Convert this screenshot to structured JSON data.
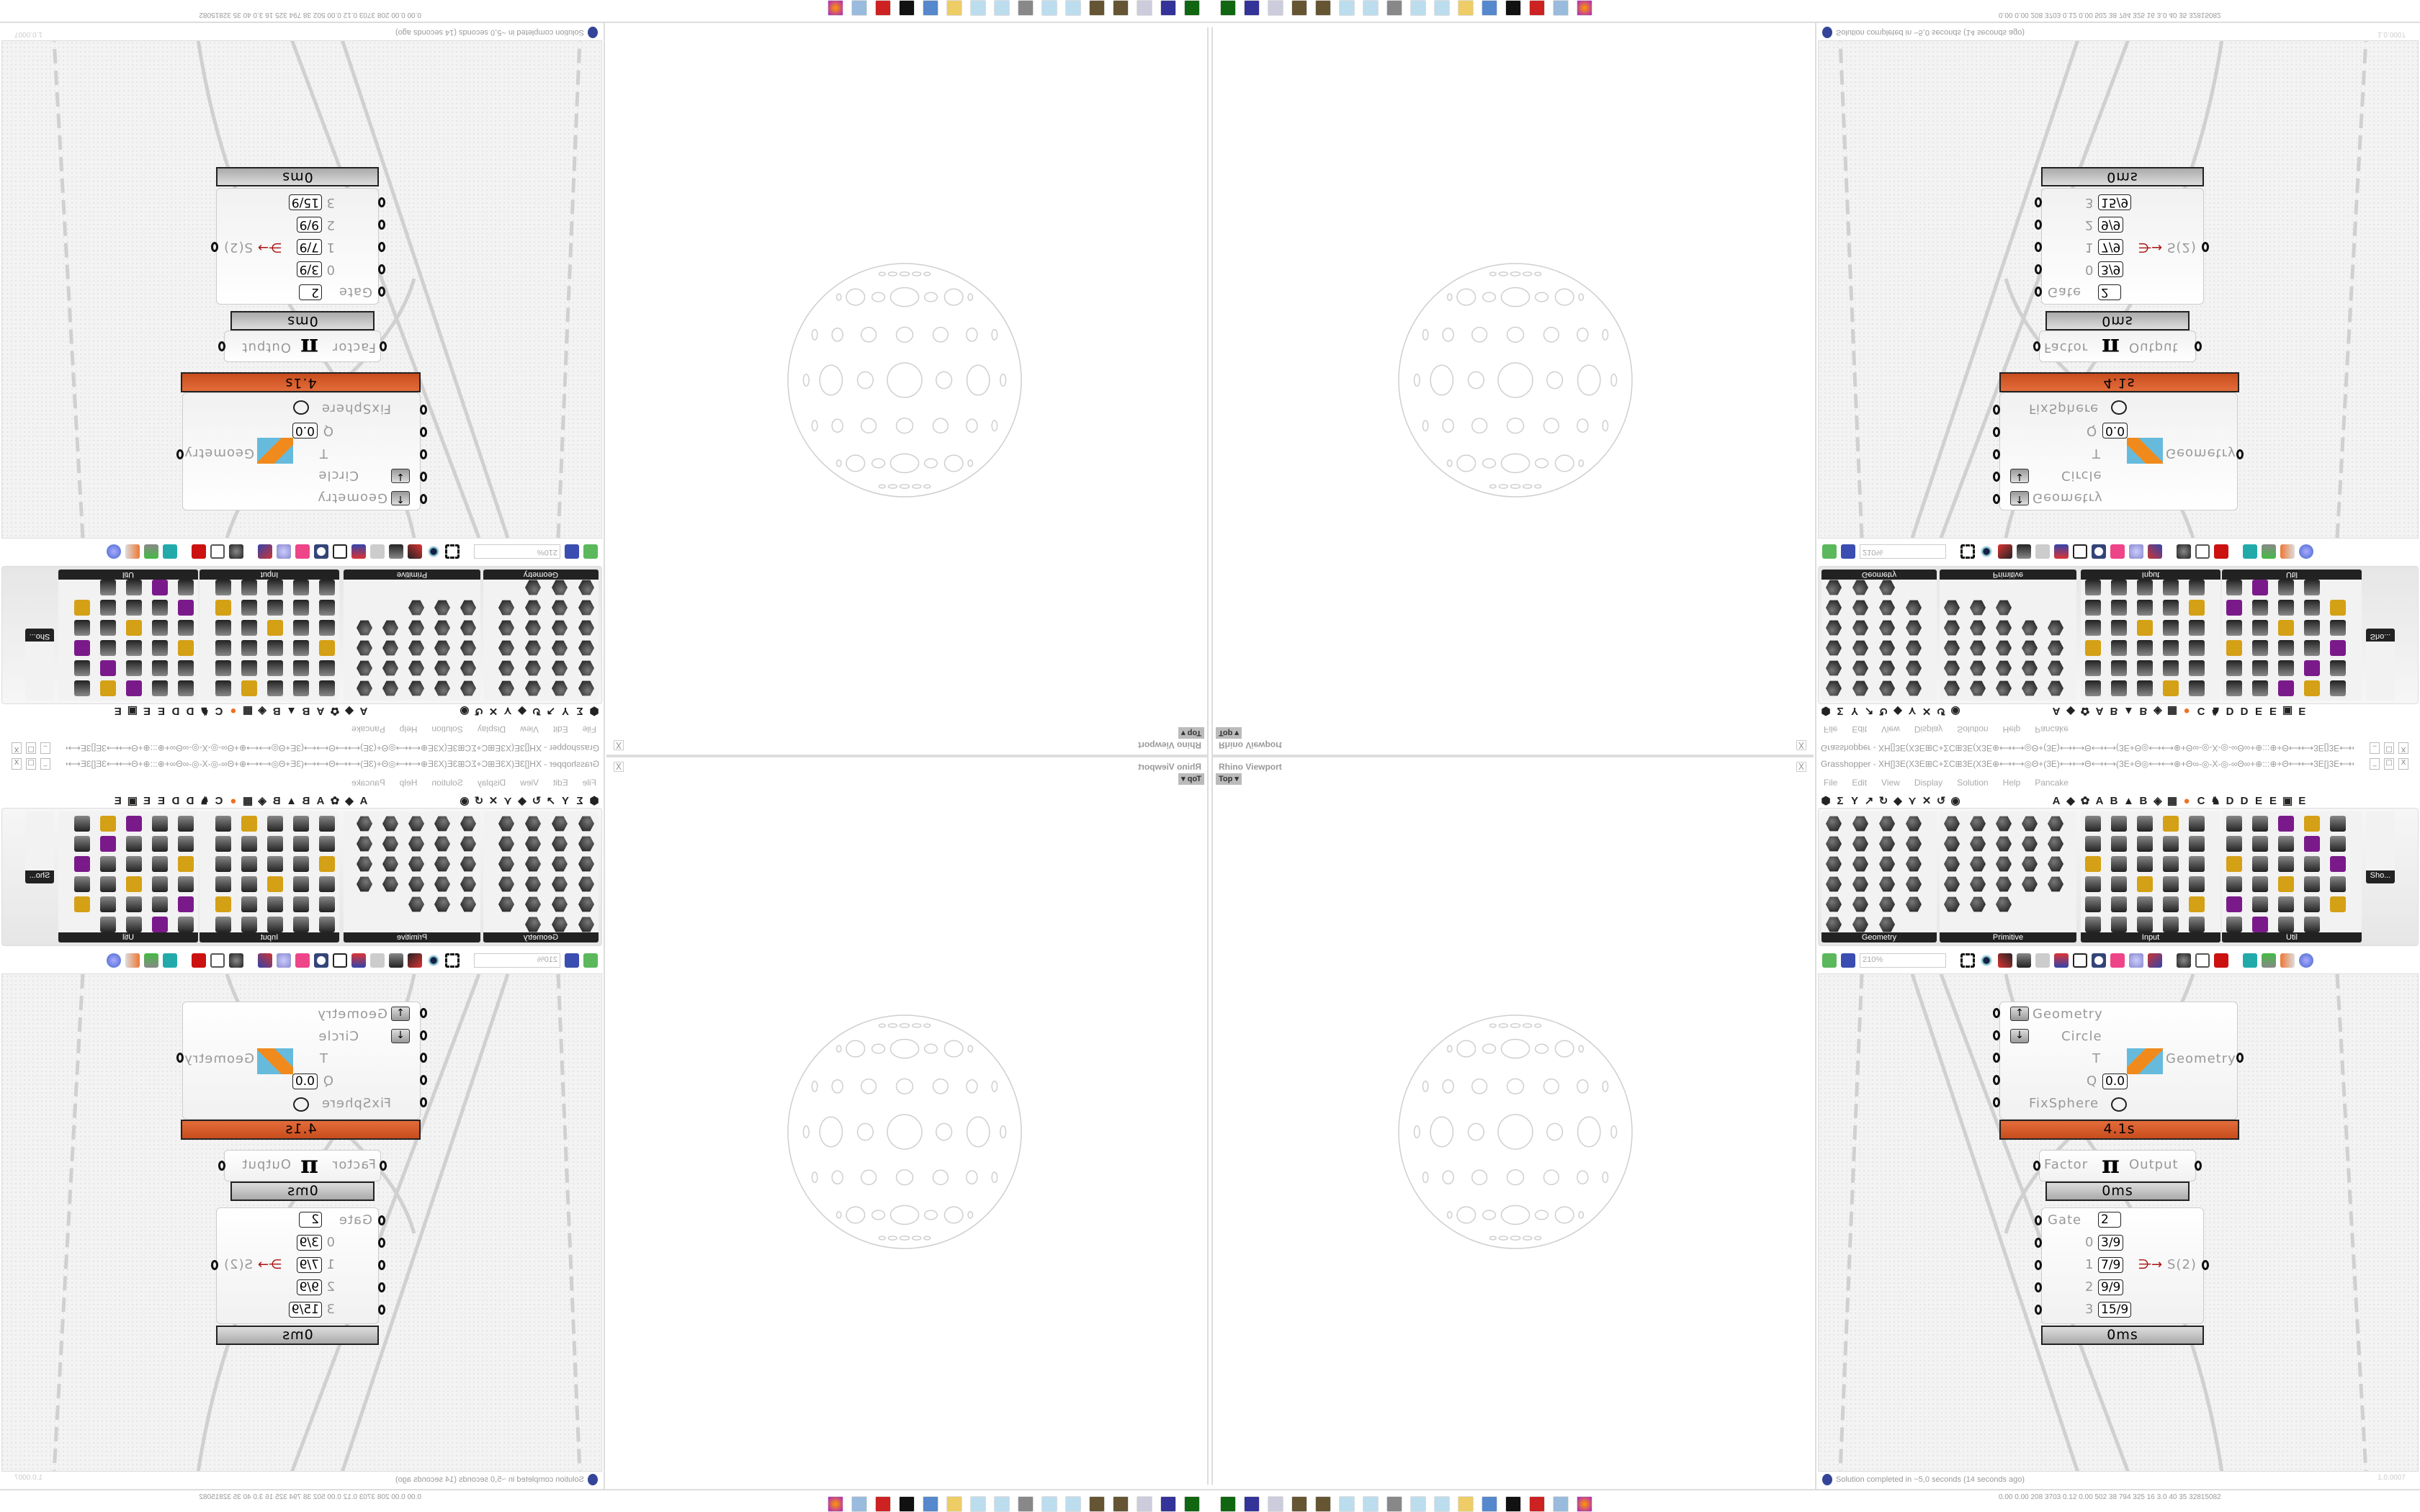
{
  "rhino_viewport": {
    "title": "Rhino Viewport",
    "view_label": "Top",
    "close": "X"
  },
  "grasshopper": {
    "title": "Grasshopper - XH[]3E(X3E⊞C+ΣC⊞3E(X3E⊕⟷⟷◎Θ+(3E)⟷⟷Θ⟷⟷(3E+Θ◎⟷⟷⊕+Θ∞-◎-X-◎-∞Θ∞+⊕:::⊕+Θ⟷⟷3E[]3E⟷⟷Θ+⊕:::⊕+Θ∞-◎-X-◎-∞Θ∞+⊕⟷⟷◎Θ+(3E)⟷⟷Θ⟷⟷...",
    "window_buttons": [
      "_",
      "□",
      "X"
    ],
    "menu": [
      "File",
      "Edit",
      "View",
      "Display",
      "Solution",
      "Help",
      "Pancake"
    ],
    "tabs": [
      "⬢",
      "Σ",
      "Y",
      "↗",
      "↻",
      "◆",
      "⋎",
      "✕",
      "↺",
      "◉",
      "A",
      "◆",
      "✿",
      "A",
      "B",
      "▲",
      "B",
      "◈",
      "▦",
      "●",
      "C",
      "♞",
      "D",
      "D",
      "E",
      "E",
      "▣",
      "E"
    ],
    "ribbon_groups": [
      {
        "label": "Geometry",
        "icon_count": 23
      },
      {
        "label": "Primitive",
        "icon_count": 23
      },
      {
        "label": "Input",
        "icon_count": 30
      },
      {
        "label": "Util",
        "icon_count": 29
      }
    ],
    "overflow_panel_label": "Sho...",
    "zoom": "210%",
    "status": "Solution completed in ~5,0 seconds (14 seconds ago)",
    "version": "1.0.0007",
    "components": {
      "kangaroo": {
        "inputs": [
          "Geometry",
          "Circle",
          "T",
          "Q",
          "FixSphere"
        ],
        "q_value": "0.0",
        "output": "Geometry",
        "time": "4.1s",
        "accent": "#d9592a"
      },
      "pi": {
        "input": "Factor",
        "symbol": "π",
        "output": "Output",
        "time": "0ms"
      },
      "stream_gate": {
        "gate_label": "Gate",
        "gate_value": "2",
        "rows": [
          {
            "index": "0",
            "value": "3/9"
          },
          {
            "index": "1",
            "value": "7/9"
          },
          {
            "index": "2",
            "value": "9/9"
          },
          {
            "index": "3",
            "value": "15/9"
          }
        ],
        "output": "S(2)",
        "time": "0ms"
      }
    }
  },
  "rhino_status": "0.00 0.00 208 3703 0.12 0.00 502 38 794 325 16 3.0 40 35 32815082",
  "taskbar_icons": [
    "firefox-icon",
    "calculator-icon",
    "red-app-icon",
    "wolf-icon",
    "control-panel-icon",
    "folder-icon",
    "notepad-icon",
    "notepad-icon",
    "monitor-icon",
    "notepad-icon",
    "notepad-icon",
    "gear-icon",
    "gear-icon",
    "document-icon",
    "floppy-icon",
    "terminal-icon"
  ]
}
